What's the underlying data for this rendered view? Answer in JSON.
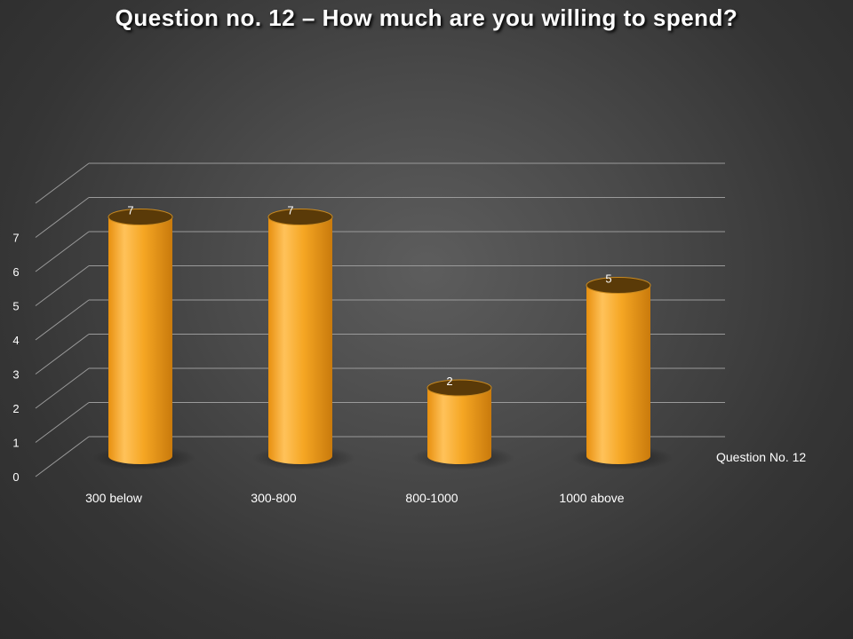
{
  "chart_data": {
    "type": "bar",
    "title": "Question no. 12 – How much are you willing to spend?",
    "categories": [
      "300 below",
      "300-800",
      "800-1000",
      "1000 above"
    ],
    "series": [
      {
        "name": "Question No. 12",
        "values": [
          7,
          7,
          2,
          5
        ]
      }
    ],
    "y_ticks": [
      "0",
      "1",
      "2",
      "3",
      "4",
      "5",
      "6",
      "7"
    ],
    "ylim": [
      0,
      7
    ],
    "grid": true,
    "legend_position": "right",
    "bar_shape": "cylinder-3d",
    "colors": {
      "bar": "#f5a623",
      "bar_highlight": "#ffc25a",
      "bar_top": "#5a3a08",
      "grid": "#9a9a9a",
      "text": "#ffffff"
    }
  }
}
